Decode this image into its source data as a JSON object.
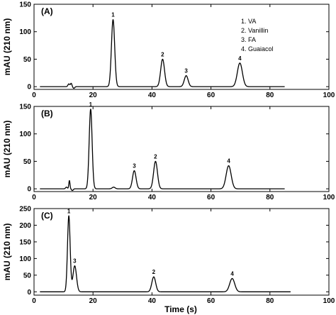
{
  "chart_data": {
    "type": "line",
    "shared_xlabel": "Time (s)",
    "legend": {
      "placement": "top-right",
      "entries": [
        "1. VA",
        "2. Vanillin",
        "3. FA",
        "4. Guaiacol"
      ]
    },
    "panels": [
      {
        "panel_label": "(A)",
        "ylabel": "mAU (210 nm)",
        "xlim": [
          0,
          100
        ],
        "ylim": [
          -5,
          150
        ],
        "xticks": [
          0,
          20,
          40,
          60,
          80,
          100
        ],
        "yticks": [
          0,
          50,
          100,
          150
        ],
        "trace_end": 85,
        "peaks": [
          {
            "label": "1",
            "x": 26.8,
            "y": 122,
            "w": 0.55
          },
          {
            "label": "2",
            "x": 43.6,
            "y": 50,
            "w": 0.65
          },
          {
            "label": "3",
            "x": 51.6,
            "y": 20,
            "w": 0.65
          },
          {
            "label": "4",
            "x": 69.8,
            "y": 43,
            "w": 0.85
          }
        ],
        "artifacts": [
          {
            "x": 11.8,
            "y": 5,
            "w": 0.3
          },
          {
            "x": 12.6,
            "y": 6,
            "w": 0.25
          },
          {
            "x": 13.5,
            "y": -3,
            "w": 0.3
          }
        ]
      },
      {
        "panel_label": "(B)",
        "ylabel": "mAU (210 nm)",
        "xlim": [
          0,
          100
        ],
        "ylim": [
          -5,
          150
        ],
        "xticks": [
          0,
          20,
          40,
          60,
          80,
          100
        ],
        "yticks": [
          0,
          50,
          100,
          150
        ],
        "trace_end": 85,
        "peaks": [
          {
            "label": "1",
            "x": 19.2,
            "y": 145,
            "w": 0.5
          },
          {
            "label": "3",
            "x": 34.0,
            "y": 33,
            "w": 0.6
          },
          {
            "label": "2",
            "x": 41.2,
            "y": 50,
            "w": 0.65
          },
          {
            "label": "4",
            "x": 66.0,
            "y": 42,
            "w": 0.85
          }
        ],
        "artifacts": [
          {
            "x": 11.0,
            "y": 3,
            "w": 0.3
          },
          {
            "x": 12.0,
            "y": 15,
            "w": 0.2
          },
          {
            "x": 13.0,
            "y": -3,
            "w": 0.3
          },
          {
            "x": 27.0,
            "y": 3,
            "w": 0.5
          }
        ]
      },
      {
        "panel_label": "(C)",
        "ylabel": "mAU (210 nm)",
        "xlim": [
          0,
          100
        ],
        "ylim": [
          -10,
          250
        ],
        "xticks": [
          0,
          20,
          40,
          60,
          80,
          100
        ],
        "yticks": [
          0,
          50,
          100,
          150,
          200,
          250
        ],
        "trace_end": 87,
        "peaks": [
          {
            "label": "1",
            "x": 11.8,
            "y": 228,
            "w": 0.45
          },
          {
            "label": "3",
            "x": 13.8,
            "y": 78,
            "w": 0.6
          },
          {
            "label": "2",
            "x": 40.6,
            "y": 45,
            "w": 0.65
          },
          {
            "label": "4",
            "x": 67.2,
            "y": 40,
            "w": 0.85
          }
        ],
        "artifacts": []
      }
    ]
  }
}
